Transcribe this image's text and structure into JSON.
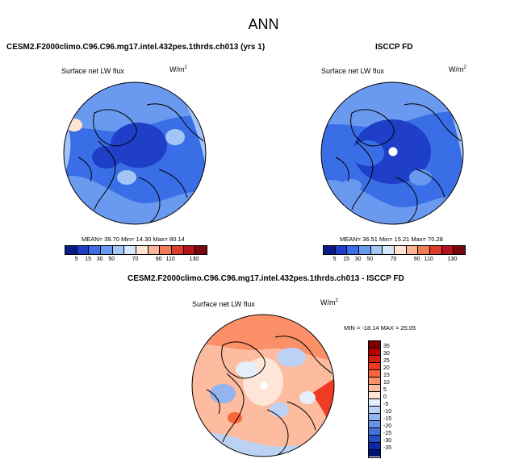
{
  "figure": {
    "title": "ANN"
  },
  "panels": [
    {
      "title": "CESM2.F2000climo.C96.C96.mg17.intel.432pes.1thrds.ch013 (yrs 1)",
      "variable": "Surface net LW flux",
      "units": "W/m",
      "units_sup": "2",
      "stats": "MEAN= 39.70   Min= 14.30   Max= 80.14"
    },
    {
      "title": "ISCCP FD",
      "variable": "Surface net LW flux",
      "units": "W/m",
      "units_sup": "2",
      "stats": "MEAN= 36.51   Min= 15.21   Max= 70.28"
    },
    {
      "title": "CESM2.F2000climo.C96.C96.mg17.intel.432pes.1thrds.ch013 - ISCCP FD",
      "variable": "Surface net LW flux",
      "units": "W/m",
      "units_sup": "2",
      "stats": "MIN = -18.14 MAX = 25.05"
    }
  ],
  "colorbar_fields": {
    "labels": [
      "5",
      "15",
      "30",
      "50",
      "70",
      "90",
      "110",
      "130"
    ],
    "colors": [
      "#0a1a8c",
      "#1f3fc9",
      "#3a6ee6",
      "#6a9af0",
      "#a3c4f7",
      "#d6e6fb",
      "#ffe3d3",
      "#fcb594",
      "#f37b58",
      "#de3d2d",
      "#b4131d",
      "#7a0610"
    ]
  },
  "colorbar_diff": {
    "labels": [
      "35",
      "30",
      "25",
      "20",
      "15",
      "10",
      "5",
      "0",
      "-5",
      "-10",
      "-15",
      "-20",
      "-25",
      "-30",
      "-35"
    ],
    "colors": [
      "#7f0000",
      "#b30000",
      "#d71a12",
      "#ef3b22",
      "#f8653a",
      "#fb8f67",
      "#fdbc9f",
      "#fde5d8",
      "#e6eefb",
      "#bcd2f5",
      "#93b4ee",
      "#6b93e3",
      "#4672d8",
      "#2450c6",
      "#0d2aa6",
      "#001472"
    ]
  }
}
